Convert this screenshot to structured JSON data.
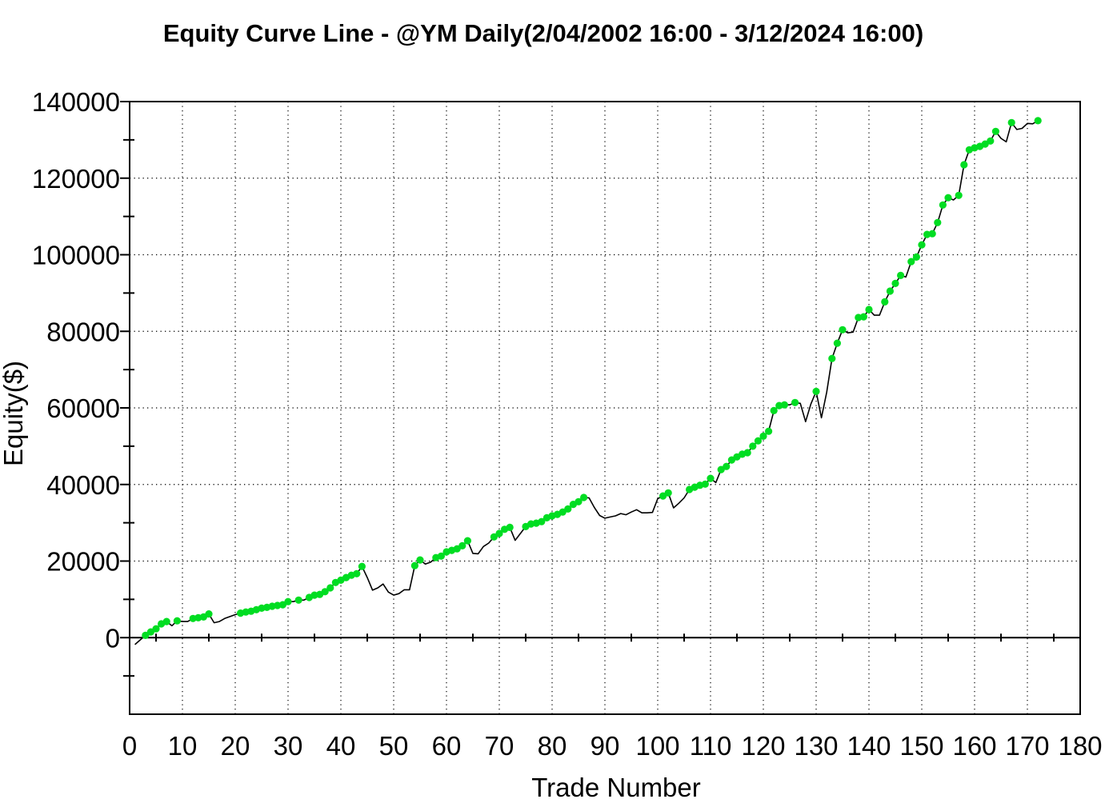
{
  "title": "Equity Curve Line - @YM Daily(2/04/2002 16:00 - 3/12/2024 16:00)",
  "chart_data": {
    "type": "line",
    "title": "Equity Curve Line - @YM Daily(2/04/2002 16:00 - 3/12/2024 16:00)",
    "xlabel": "Trade Number",
    "ylabel": "Equity($)",
    "xlim": [
      0,
      180
    ],
    "ylim": [
      -20000,
      140000
    ],
    "grid": "dotted",
    "grid_color": "#000000",
    "line_color": "#000000",
    "markers": {
      "color": "#00dd22",
      "rule": "new_equity_high",
      "radius": 4.6
    },
    "x_ticks": [
      0,
      10,
      20,
      30,
      40,
      50,
      60,
      70,
      80,
      90,
      100,
      110,
      120,
      130,
      140,
      150,
      160,
      170,
      180
    ],
    "x_tick_labels": [
      "0",
      "10",
      "20",
      "30",
      "40",
      "50",
      "60",
      "70",
      "80",
      "90",
      "100",
      "110",
      "120",
      "130",
      "140",
      "150",
      "160",
      "170",
      "180"
    ],
    "x_ticks_minor": [
      5,
      15,
      25,
      35,
      45,
      55,
      65,
      75,
      85,
      95,
      105,
      115,
      125,
      135,
      145,
      155,
      165,
      175
    ],
    "y_ticks": [
      0,
      20000,
      40000,
      60000,
      80000,
      100000,
      120000,
      140000
    ],
    "y_tick_labels": [
      "0",
      "20000",
      "40000",
      "60000",
      "80000",
      "100000",
      "120000",
      "140000"
    ],
    "y_ticks_minor": [
      -10000,
      10000,
      30000,
      50000,
      70000,
      90000,
      110000,
      130000
    ],
    "y_gridlines": [
      20000,
      40000,
      60000,
      80000,
      100000,
      120000
    ],
    "series": [
      {
        "name": "Equity",
        "x_start": 1,
        "x_step": 1,
        "values": [
          -1800,
          -600,
          600,
          1500,
          2300,
          3600,
          4200,
          3100,
          4400,
          4200,
          4200,
          5000,
          5200,
          5400,
          6200,
          3900,
          4200,
          5000,
          5500,
          6000,
          6400,
          6700,
          6900,
          7300,
          7700,
          7900,
          8200,
          8400,
          8600,
          9400,
          9400,
          9800,
          9800,
          10500,
          11100,
          11300,
          12000,
          13000,
          14400,
          15000,
          15700,
          16300,
          16700,
          18600,
          15700,
          12400,
          13000,
          14000,
          11900,
          11100,
          11500,
          12500,
          12500,
          18800,
          20300,
          19200,
          19700,
          20900,
          21300,
          22400,
          22800,
          23200,
          24000,
          25300,
          22000,
          21900,
          23800,
          24700,
          26300,
          27200,
          28300,
          28800,
          25400,
          27200,
          29000,
          29700,
          29900,
          30300,
          31300,
          31800,
          32200,
          32800,
          33600,
          34800,
          35500,
          36600,
          36500,
          34000,
          31900,
          31200,
          31500,
          31800,
          32400,
          32100,
          32800,
          33400,
          32600,
          32600,
          32700,
          36300,
          37000,
          37800,
          33900,
          35100,
          36500,
          38700,
          39300,
          39800,
          40100,
          41600,
          40500,
          43900,
          44700,
          46400,
          47200,
          47900,
          48300,
          50000,
          51400,
          52600,
          53900,
          59300,
          60600,
          60800,
          60800,
          61400,
          61200,
          56400,
          61000,
          64300,
          57400,
          64100,
          72900,
          76900,
          80400,
          79600,
          79800,
          83600,
          83800,
          85700,
          84200,
          84200,
          87700,
          90500,
          92500,
          94600,
          94200,
          98200,
          99400,
          102600,
          105300,
          105500,
          108400,
          113000,
          114900,
          114300,
          115500,
          123500,
          127400,
          127900,
          128300,
          128900,
          129700,
          132200,
          130400,
          129500,
          134500,
          132700,
          133000,
          134300,
          134200,
          135000
        ]
      }
    ]
  }
}
